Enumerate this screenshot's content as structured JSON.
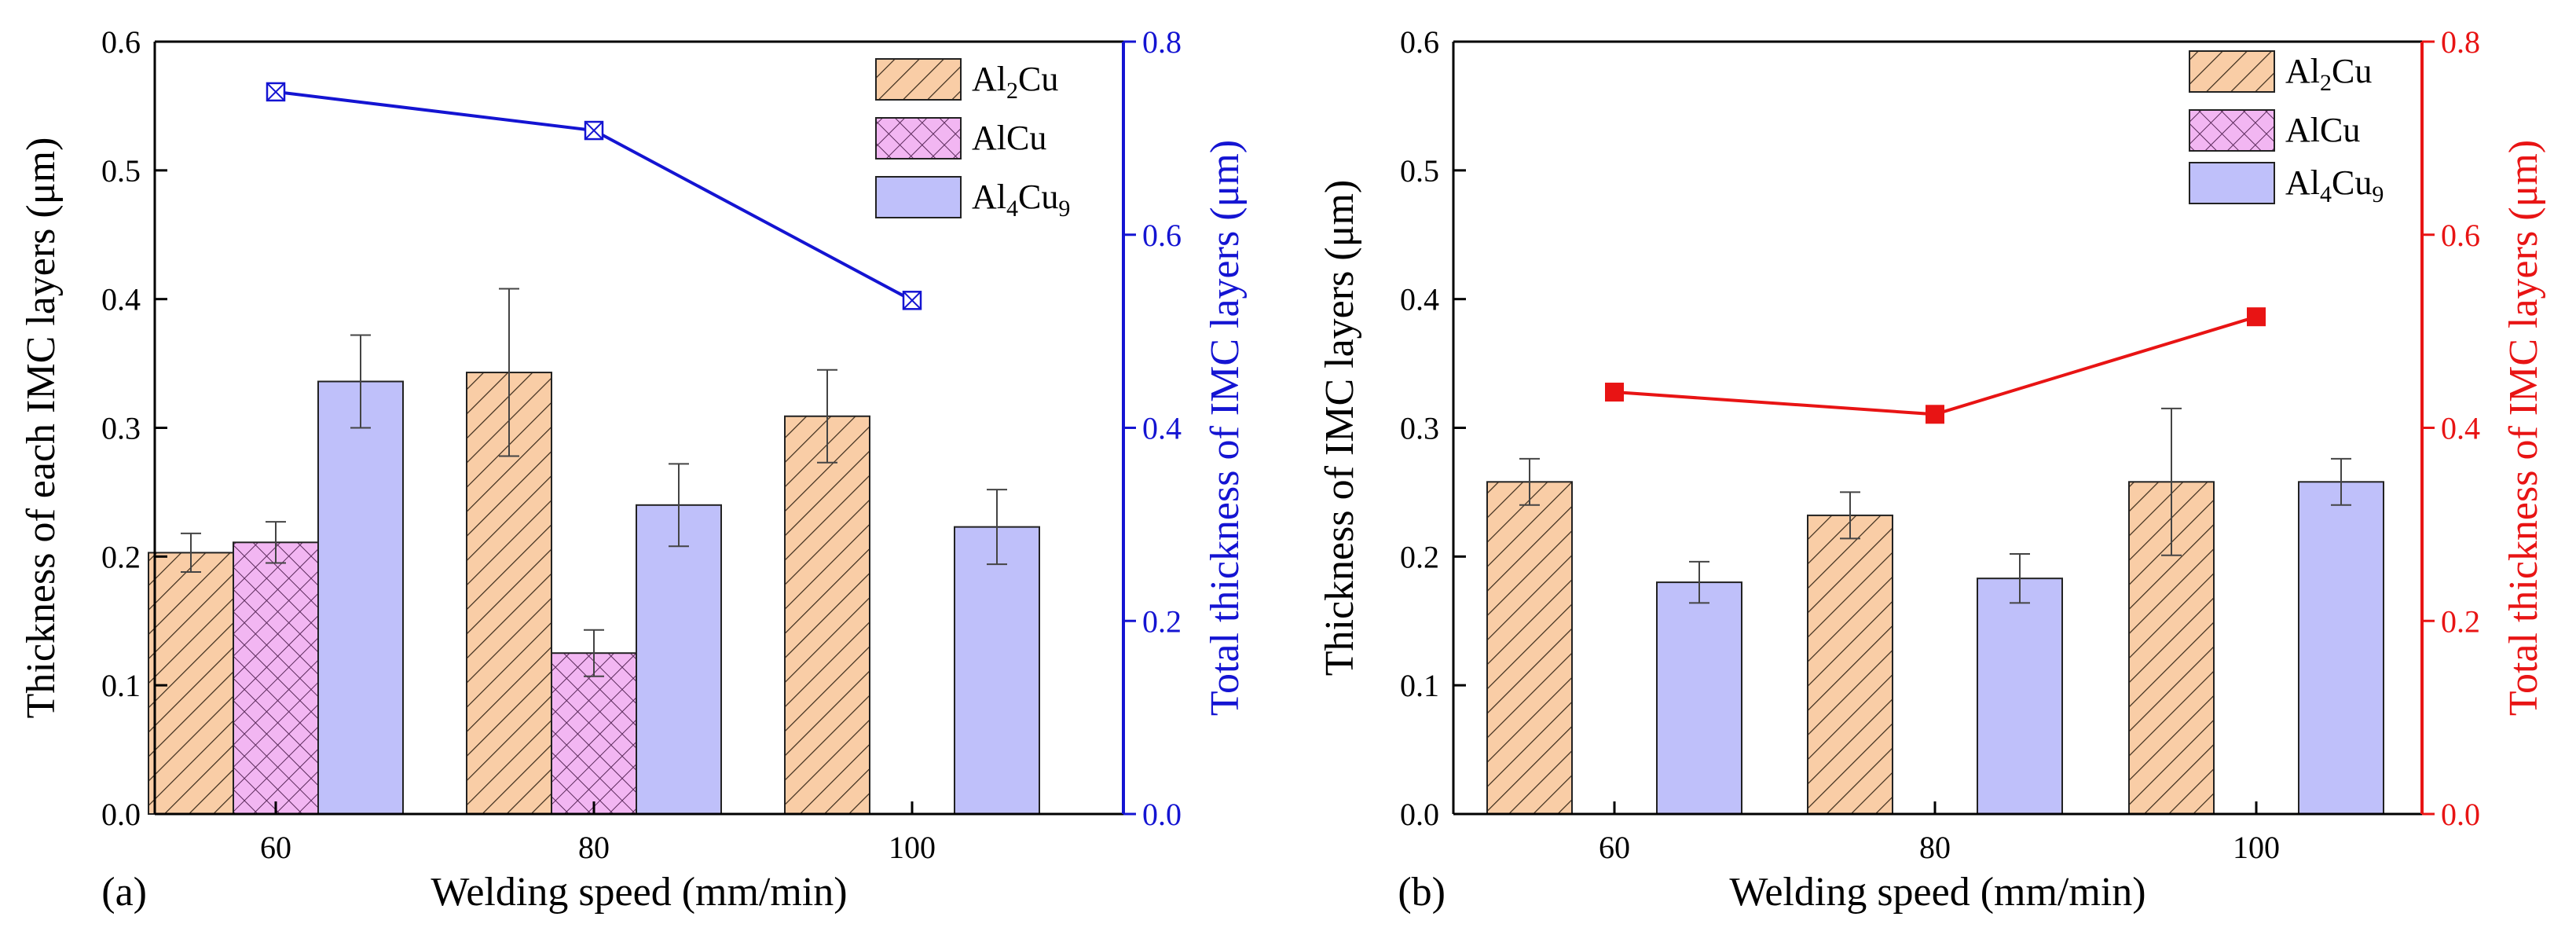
{
  "chart_data": [
    {
      "type": "bar",
      "panel_label": "(a)",
      "xlabel": "Welding speed (mm/min)",
      "ylabel": "Thickness of each IMC layers (μm)",
      "y2label": "Total thickness of IMC layers (μm)",
      "y2_color": "#1414d2",
      "categories": [
        "60",
        "80",
        "100"
      ],
      "ylim": [
        0,
        0.6
      ],
      "yticks": [
        "0.0",
        "0.1",
        "0.2",
        "0.3",
        "0.4",
        "0.5",
        "0.6"
      ],
      "y2lim": [
        0,
        0.8
      ],
      "y2ticks": [
        "0.0",
        "0.2",
        "0.4",
        "0.6",
        "0.8"
      ],
      "legend_position": "top-right",
      "series": [
        {
          "name": "Al2Cu",
          "base": "Al",
          "sub1": "2",
          "mid": "Cu",
          "sub2": "",
          "pattern": "hatch",
          "values": [
            0.203,
            0.343,
            0.309
          ],
          "errors": [
            0.015,
            0.065,
            0.036
          ]
        },
        {
          "name": "AlCu",
          "base": "AlCu",
          "sub1": "",
          "mid": "",
          "sub2": "",
          "pattern": "cross",
          "values": [
            0.211,
            0.125,
            null
          ],
          "errors": [
            0.016,
            0.018,
            null
          ]
        },
        {
          "name": "Al4Cu9",
          "base": "Al",
          "sub1": "4",
          "mid": "Cu",
          "sub2": "9",
          "pattern": "solid",
          "values": [
            0.336,
            0.24,
            0.223
          ],
          "errors": [
            0.036,
            0.032,
            0.029
          ]
        }
      ],
      "total_line": {
        "marker": "boxed-x",
        "color": "#1414d2",
        "x": [
          "60",
          "80",
          "100"
        ],
        "values": [
          0.748,
          0.708,
          0.532
        ]
      }
    },
    {
      "type": "bar",
      "panel_label": "(b)",
      "xlabel": "Welding speed (mm/min)",
      "ylabel": "Thickness of IMC layers (μm)",
      "y2label": "Total thickness of IMC layers (μm)",
      "y2_color": "#e81414",
      "categories": [
        "60",
        "80",
        "100"
      ],
      "ylim": [
        0,
        0.6
      ],
      "yticks": [
        "0.0",
        "0.1",
        "0.2",
        "0.3",
        "0.4",
        "0.5",
        "0.6"
      ],
      "y2lim": [
        0,
        0.8
      ],
      "y2ticks": [
        "0.0",
        "0.2",
        "0.4",
        "0.6",
        "0.8"
      ],
      "legend_position": "top-right",
      "series": [
        {
          "name": "Al2Cu",
          "base": "Al",
          "sub1": "2",
          "mid": "Cu",
          "sub2": "",
          "pattern": "hatch",
          "values": [
            0.258,
            0.232,
            0.258
          ],
          "errors": [
            0.018,
            0.018,
            0.057
          ]
        },
        {
          "name": "AlCu",
          "base": "AlCu",
          "sub1": "",
          "mid": "",
          "sub2": "",
          "pattern": "cross",
          "values": [
            null,
            null,
            null
          ],
          "errors": [
            null,
            null,
            null
          ]
        },
        {
          "name": "Al4Cu9",
          "base": "Al",
          "sub1": "4",
          "mid": "Cu",
          "sub2": "9",
          "pattern": "solid",
          "values": [
            0.18,
            0.183,
            0.258
          ],
          "errors": [
            0.016,
            0.019,
            0.018
          ]
        }
      ],
      "total_line": {
        "marker": "square",
        "color": "#e81414",
        "x": [
          "60",
          "80",
          "100"
        ],
        "values": [
          0.437,
          0.414,
          0.515
        ]
      }
    }
  ]
}
